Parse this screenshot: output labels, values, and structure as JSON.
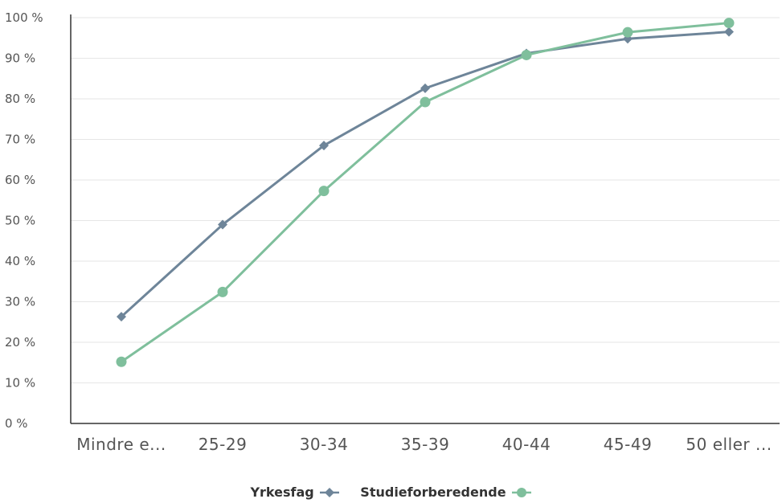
{
  "chart_data": {
    "type": "line",
    "categories": [
      "Mindre e...",
      "25-29",
      "30-34",
      "35-39",
      "40-44",
      "45-49",
      "50 eller ..."
    ],
    "y_ticks": [
      "0 %",
      "10 %",
      "20 %",
      "30 %",
      "40 %",
      "50 %",
      "60 %",
      "70 %",
      "80 %",
      "90 %",
      "100 %"
    ],
    "ylim": [
      0,
      100
    ],
    "grid": true,
    "legend_position": "bottom",
    "series": [
      {
        "name": "Yrkesfag",
        "marker": "diamond",
        "color": "#6e8599",
        "values": [
          26.3,
          49.0,
          68.5,
          82.6,
          91.2,
          94.8,
          96.5
        ]
      },
      {
        "name": "Studieforberedende",
        "marker": "circle",
        "color": "#7fbf9c",
        "values": [
          15.2,
          32.4,
          57.3,
          79.2,
          90.8,
          96.4,
          98.7
        ]
      }
    ]
  }
}
